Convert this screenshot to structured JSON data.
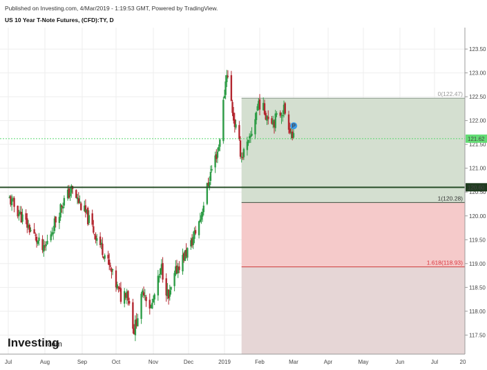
{
  "header": {
    "published": "Published on Investing.com, 4/Mar/2019 - 1:19:53 GMT, Powered by TradingView.",
    "title": "US 10 Year T-Note Futures, (CFD):TY, D"
  },
  "logo": {
    "main": "Investing",
    "suffix": ".com"
  },
  "colors": {
    "up": "#2d9c46",
    "down": "#b3262f",
    "grid": "#eeeeee",
    "fib_zone_upper": "#d4dfd0",
    "fib_zone_lower": "#f5caca",
    "fib_zone_extension": "#e6d6d6",
    "price_line": "#56d66c",
    "support_line": "#264d26",
    "marker": "#3a9ae8"
  },
  "chart_data": {
    "type": "candlestick",
    "title": "US 10 Year T-Note Futures, (CFD):TY, D",
    "x_ticks": [
      "Jul",
      "Aug",
      "Sep",
      "Oct",
      "Nov",
      "Dec",
      "2019",
      "Feb",
      "Mar",
      "Apr",
      "May",
      "Jun",
      "Jul",
      "20"
    ],
    "y_ticks": [
      "117.50",
      "118.00",
      "118.50",
      "119.00",
      "119.50",
      "120.00",
      "120.50",
      "121.00",
      "121.50",
      "122.00",
      "122.50",
      "123.00",
      "123.50"
    ],
    "ylim": [
      117.1,
      123.95
    ],
    "grid": true,
    "last_price": {
      "value": 121.62,
      "label": "121.62"
    },
    "support_line": {
      "value": 120.6,
      "label": "120.60"
    },
    "marker": {
      "label": "P",
      "date": "2019-02-28",
      "value": 121.92
    },
    "fibonacci": {
      "start_date": "2019-01-16",
      "levels": [
        {
          "ratio": "0",
          "value": 122.47,
          "label": "0(122.47)"
        },
        {
          "ratio": "1",
          "value": 120.28,
          "label": "1(120.28)"
        },
        {
          "ratio": "1.618",
          "value": 118.93,
          "label": "1.618(118.93)"
        }
      ]
    },
    "key_points": [
      [
        "2018-07-02",
        120.35
      ],
      [
        "2018-07-20",
        119.7
      ],
      [
        "2018-07-31",
        119.25
      ],
      [
        "2018-08-15",
        120.25
      ],
      [
        "2018-08-23",
        120.55
      ],
      [
        "2018-09-05",
        120.0
      ],
      [
        "2018-09-20",
        119.25
      ],
      [
        "2018-10-05",
        118.3
      ],
      [
        "2018-10-10",
        118.45
      ],
      [
        "2018-10-16",
        117.6
      ],
      [
        "2018-10-24",
        118.45
      ],
      [
        "2018-10-30",
        118.05
      ],
      [
        "2018-11-08",
        118.9
      ],
      [
        "2018-11-14",
        118.25
      ],
      [
        "2018-11-21",
        118.9
      ],
      [
        "2018-12-03",
        119.4
      ],
      [
        "2018-12-11",
        119.95
      ],
      [
        "2018-12-20",
        120.9
      ],
      [
        "2018-12-27",
        121.45
      ],
      [
        "2019-01-03",
        123.05
      ],
      [
        "2019-01-09",
        122.05
      ],
      [
        "2019-01-16",
        121.25
      ],
      [
        "2019-01-23",
        121.55
      ],
      [
        "2019-01-31",
        122.4
      ],
      [
        "2019-02-06",
        122.15
      ],
      [
        "2019-02-13",
        122.0
      ],
      [
        "2019-02-21",
        122.25
      ],
      [
        "2019-03-01",
        121.6
      ]
    ]
  }
}
